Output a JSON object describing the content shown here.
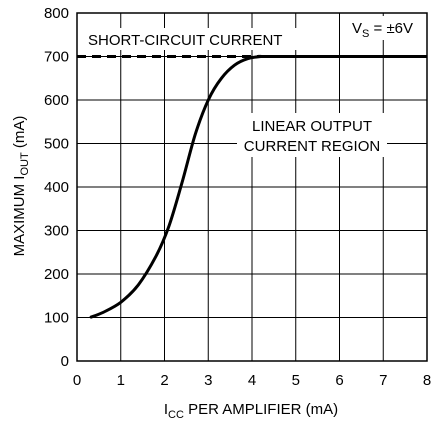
{
  "chart_data": {
    "type": "line",
    "title": "",
    "xlabel": {
      "main": "I",
      "sub": "CC",
      "rest": " PER AMPLIFIER (mA)"
    },
    "ylabel": {
      "main": "MAXIMUM I",
      "sub": "OUT",
      "rest": " (mA)"
    },
    "xlim": [
      0,
      8
    ],
    "ylim": [
      0,
      800
    ],
    "x_ticks": [
      "0",
      "1",
      "2",
      "3",
      "4",
      "5",
      "6",
      "7",
      "8"
    ],
    "y_ticks": [
      "0",
      "100",
      "200",
      "300",
      "400",
      "500",
      "600",
      "700",
      "800"
    ],
    "grid": true,
    "series": [
      {
        "style": "solid",
        "x": [
          0.3,
          0.6,
          1.0,
          1.4,
          1.8,
          2.1,
          2.4,
          2.7,
          3.0,
          3.3,
          3.6,
          3.9,
          4.2,
          4.5,
          8.0
        ],
        "y": [
          100,
          112,
          135,
          175,
          240,
          310,
          410,
          520,
          600,
          650,
          680,
          695,
          700,
          700,
          700
        ]
      },
      {
        "style": "dashed",
        "x": [
          0,
          4.2
        ],
        "y": [
          700,
          700
        ]
      }
    ],
    "annotations": {
      "short_circuit": "SHORT-CIRCUIT CURRENT",
      "linear_line1": "LINEAR OUTPUT",
      "linear_line2": "CURRENT REGION",
      "vs": {
        "main": "V",
        "sub": "S",
        "rest": " = ±6V"
      }
    }
  }
}
